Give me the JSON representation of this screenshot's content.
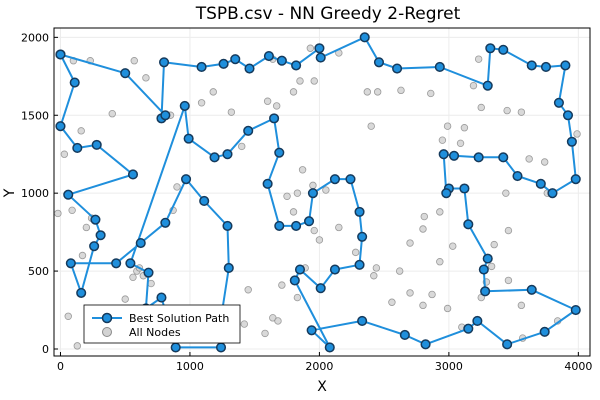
{
  "chart_data": {
    "type": "scatter",
    "title": "TSPB.csv - NN Greedy 2-Regret",
    "xlabel": "X",
    "ylabel": "Y",
    "xlim": [
      -50,
      4090
    ],
    "ylim": [
      -45,
      2060
    ],
    "xticks": [
      0,
      1000,
      2000,
      3000,
      4000
    ],
    "yticks": [
      0,
      500,
      1000,
      1500,
      2000
    ],
    "grid": true,
    "legend_position": "bottom-left",
    "colors": {
      "path_line": "#1f8fdc",
      "path_marker_fill": "#1f8fdc",
      "path_marker_stroke": "#153a5c",
      "node_fill": "#d3d3d3",
      "node_stroke": "#8a8a8a",
      "grid": "#ececec"
    },
    "series": [
      {
        "name": "Best Solution Path",
        "style": "line+markers",
        "points": [
          [
            0,
            1890
          ],
          [
            110,
            1710
          ],
          [
            0,
            1430
          ],
          [
            130,
            1290
          ],
          [
            280,
            1310
          ],
          [
            560,
            1120
          ],
          [
            60,
            990
          ],
          [
            270,
            830
          ],
          [
            310,
            730
          ],
          [
            260,
            660
          ],
          [
            160,
            360
          ],
          [
            80,
            550
          ],
          [
            430,
            550
          ],
          [
            620,
            680
          ],
          [
            810,
            810
          ],
          [
            970,
            1090
          ],
          [
            1110,
            950
          ],
          [
            1290,
            790
          ],
          [
            1300,
            520
          ],
          [
            1250,
            250
          ],
          [
            1240,
            10
          ],
          [
            890,
            10
          ],
          [
            780,
            330
          ],
          [
            660,
            260
          ],
          [
            680,
            490
          ],
          [
            540,
            550
          ],
          [
            960,
            1560
          ],
          [
            990,
            1350
          ],
          [
            1190,
            1230
          ],
          [
            1290,
            1250
          ],
          [
            1450,
            1400
          ],
          [
            1650,
            1480
          ],
          [
            1690,
            1260
          ],
          [
            1600,
            1060
          ],
          [
            1690,
            790
          ],
          [
            1820,
            790
          ],
          [
            1920,
            820
          ],
          [
            1950,
            1000
          ],
          [
            2120,
            1090
          ],
          [
            2240,
            1090
          ],
          [
            2310,
            880
          ],
          [
            2330,
            720
          ],
          [
            2310,
            540
          ],
          [
            2120,
            510
          ],
          [
            2010,
            390
          ],
          [
            1850,
            510
          ],
          [
            1810,
            440
          ],
          [
            2080,
            10
          ],
          [
            1940,
            120
          ],
          [
            2330,
            180
          ],
          [
            2660,
            90
          ],
          [
            2820,
            30
          ],
          [
            3150,
            130
          ],
          [
            3220,
            180
          ],
          [
            3450,
            30
          ],
          [
            3740,
            110
          ],
          [
            3980,
            250
          ],
          [
            3640,
            380
          ],
          [
            3280,
            370
          ],
          [
            3270,
            510
          ],
          [
            3300,
            580
          ],
          [
            3150,
            800
          ],
          [
            3120,
            1030
          ],
          [
            3000,
            1030
          ],
          [
            2980,
            1000
          ],
          [
            2960,
            1250
          ],
          [
            3040,
            1240
          ],
          [
            3230,
            1230
          ],
          [
            3420,
            1230
          ],
          [
            3530,
            1110
          ],
          [
            3710,
            1060
          ],
          [
            3800,
            1000
          ],
          [
            3980,
            1090
          ],
          [
            3950,
            1330
          ],
          [
            3920,
            1500
          ],
          [
            3850,
            1580
          ],
          [
            3900,
            1820
          ],
          [
            3750,
            1810
          ],
          [
            3640,
            1820
          ],
          [
            3420,
            1920
          ],
          [
            3320,
            1930
          ],
          [
            3300,
            1690
          ],
          [
            2930,
            1810
          ],
          [
            2600,
            1800
          ],
          [
            2460,
            1840
          ],
          [
            2350,
            2000
          ],
          [
            2010,
            1870
          ],
          [
            2000,
            1930
          ],
          [
            1820,
            1820
          ],
          [
            1710,
            1850
          ],
          [
            1610,
            1880
          ],
          [
            1460,
            1800
          ],
          [
            1350,
            1860
          ],
          [
            1260,
            1830
          ],
          [
            1090,
            1810
          ],
          [
            800,
            1840
          ],
          [
            780,
            1480
          ],
          [
            810,
            1500
          ],
          [
            500,
            1770
          ],
          [
            0,
            1890
          ]
        ]
      },
      {
        "name": "All Nodes",
        "style": "markers",
        "points": [
          [
            0,
            1890
          ],
          [
            110,
            1710
          ],
          [
            0,
            1430
          ],
          [
            130,
            1290
          ],
          [
            280,
            1310
          ],
          [
            560,
            1120
          ],
          [
            60,
            990
          ],
          [
            270,
            830
          ],
          [
            310,
            730
          ],
          [
            260,
            660
          ],
          [
            160,
            360
          ],
          [
            80,
            550
          ],
          [
            430,
            550
          ],
          [
            620,
            680
          ],
          [
            810,
            810
          ],
          [
            970,
            1090
          ],
          [
            1110,
            950
          ],
          [
            1290,
            790
          ],
          [
            1300,
            520
          ],
          [
            1250,
            250
          ],
          [
            1240,
            10
          ],
          [
            890,
            10
          ],
          [
            780,
            330
          ],
          [
            660,
            260
          ],
          [
            680,
            490
          ],
          [
            540,
            550
          ],
          [
            960,
            1560
          ],
          [
            990,
            1350
          ],
          [
            1190,
            1230
          ],
          [
            1290,
            1250
          ],
          [
            1450,
            1400
          ],
          [
            1650,
            1480
          ],
          [
            1690,
            1260
          ],
          [
            1600,
            1060
          ],
          [
            1690,
            790
          ],
          [
            1820,
            790
          ],
          [
            1920,
            820
          ],
          [
            1950,
            1000
          ],
          [
            2120,
            1090
          ],
          [
            2240,
            1090
          ],
          [
            2310,
            880
          ],
          [
            2330,
            720
          ],
          [
            2310,
            540
          ],
          [
            2120,
            510
          ],
          [
            2010,
            390
          ],
          [
            1850,
            510
          ],
          [
            1810,
            440
          ],
          [
            2080,
            10
          ],
          [
            1940,
            120
          ],
          [
            2330,
            180
          ],
          [
            2660,
            90
          ],
          [
            2820,
            30
          ],
          [
            3150,
            130
          ],
          [
            3220,
            180
          ],
          [
            3450,
            30
          ],
          [
            3740,
            110
          ],
          [
            3980,
            250
          ],
          [
            3640,
            380
          ],
          [
            3280,
            370
          ],
          [
            3270,
            510
          ],
          [
            3300,
            580
          ],
          [
            3150,
            800
          ],
          [
            3120,
            1030
          ],
          [
            3000,
            1030
          ],
          [
            2980,
            1000
          ],
          [
            2960,
            1250
          ],
          [
            3040,
            1240
          ],
          [
            3230,
            1230
          ],
          [
            3420,
            1230
          ],
          [
            3530,
            1110
          ],
          [
            3710,
            1060
          ],
          [
            3800,
            1000
          ],
          [
            3980,
            1090
          ],
          [
            3950,
            1330
          ],
          [
            3920,
            1500
          ],
          [
            3850,
            1580
          ],
          [
            3900,
            1820
          ],
          [
            3750,
            1810
          ],
          [
            3640,
            1820
          ],
          [
            3420,
            1920
          ],
          [
            3320,
            1930
          ],
          [
            3300,
            1690
          ],
          [
            2930,
            1810
          ],
          [
            2600,
            1800
          ],
          [
            2460,
            1840
          ],
          [
            2350,
            2000
          ],
          [
            2010,
            1870
          ],
          [
            2000,
            1930
          ],
          [
            1820,
            1820
          ],
          [
            1710,
            1850
          ],
          [
            1610,
            1880
          ],
          [
            1460,
            1800
          ],
          [
            1350,
            1860
          ],
          [
            1260,
            1830
          ],
          [
            1090,
            1810
          ],
          [
            800,
            1840
          ],
          [
            780,
            1480
          ],
          [
            810,
            1500
          ],
          [
            500,
            1770
          ],
          [
            -20,
            870
          ],
          [
            90,
            890
          ],
          [
            160,
            1400
          ],
          [
            230,
            1850
          ],
          [
            100,
            1850
          ],
          [
            30,
            1250
          ],
          [
            200,
            780
          ],
          [
            170,
            600
          ],
          [
            240,
            840
          ],
          [
            400,
            1510
          ],
          [
            570,
            1850
          ],
          [
            660,
            1740
          ],
          [
            850,
            1500
          ],
          [
            900,
            1040
          ],
          [
            870,
            890
          ],
          [
            590,
            500
          ],
          [
            610,
            520
          ],
          [
            640,
            470
          ],
          [
            700,
            420
          ],
          [
            560,
            460
          ],
          [
            500,
            320
          ],
          [
            300,
            200
          ],
          [
            380,
            220
          ],
          [
            130,
            20
          ],
          [
            60,
            210
          ],
          [
            1090,
            1580
          ],
          [
            1180,
            1650
          ],
          [
            1320,
            1520
          ],
          [
            1400,
            1300
          ],
          [
            1600,
            1590
          ],
          [
            1640,
            1860
          ],
          [
            1670,
            1560
          ],
          [
            1850,
            1720
          ],
          [
            1800,
            1650
          ],
          [
            1960,
            1720
          ],
          [
            1930,
            1930
          ],
          [
            2150,
            1900
          ],
          [
            2370,
            1650
          ],
          [
            2400,
            1430
          ],
          [
            2450,
            1650
          ],
          [
            1750,
            980
          ],
          [
            1830,
            1000
          ],
          [
            1870,
            1150
          ],
          [
            1950,
            1050
          ],
          [
            2050,
            1020
          ],
          [
            1800,
            880
          ],
          [
            2000,
            700
          ],
          [
            1960,
            760
          ],
          [
            2150,
            780
          ],
          [
            2280,
            620
          ],
          [
            1830,
            330
          ],
          [
            1890,
            520
          ],
          [
            1710,
            410
          ],
          [
            1640,
            200
          ],
          [
            1680,
            180
          ],
          [
            1580,
            100
          ],
          [
            1450,
            380
          ],
          [
            1420,
            160
          ],
          [
            2420,
            470
          ],
          [
            2560,
            300
          ],
          [
            2440,
            520
          ],
          [
            2620,
            500
          ],
          [
            2700,
            680
          ],
          [
            2810,
            850
          ],
          [
            2800,
            770
          ],
          [
            2930,
            880
          ],
          [
            2870,
            350
          ],
          [
            2930,
            560
          ],
          [
            2700,
            360
          ],
          [
            2800,
            280
          ],
          [
            3030,
            660
          ],
          [
            2990,
            260
          ],
          [
            3100,
            140
          ],
          [
            3290,
            430
          ],
          [
            3250,
            330
          ],
          [
            3330,
            530
          ],
          [
            3460,
            440
          ],
          [
            3560,
            280
          ],
          [
            3570,
            70
          ],
          [
            3840,
            180
          ],
          [
            3990,
            1380
          ],
          [
            3740,
            1200
          ],
          [
            3760,
            1000
          ],
          [
            3620,
            1220
          ],
          [
            3450,
            1530
          ],
          [
            3560,
            1520
          ],
          [
            3230,
            1860
          ],
          [
            3190,
            1690
          ],
          [
            3250,
            1550
          ],
          [
            3090,
            1320
          ],
          [
            3120,
            1420
          ],
          [
            2950,
            1340
          ],
          [
            2990,
            1430
          ],
          [
            2860,
            1640
          ],
          [
            2630,
            1660
          ],
          [
            3030,
            1240
          ],
          [
            3440,
            1000
          ],
          [
            3350,
            670
          ],
          [
            3460,
            760
          ]
        ]
      }
    ]
  },
  "legend": [
    {
      "label": "Best Solution Path"
    },
    {
      "label": "All Nodes"
    }
  ]
}
